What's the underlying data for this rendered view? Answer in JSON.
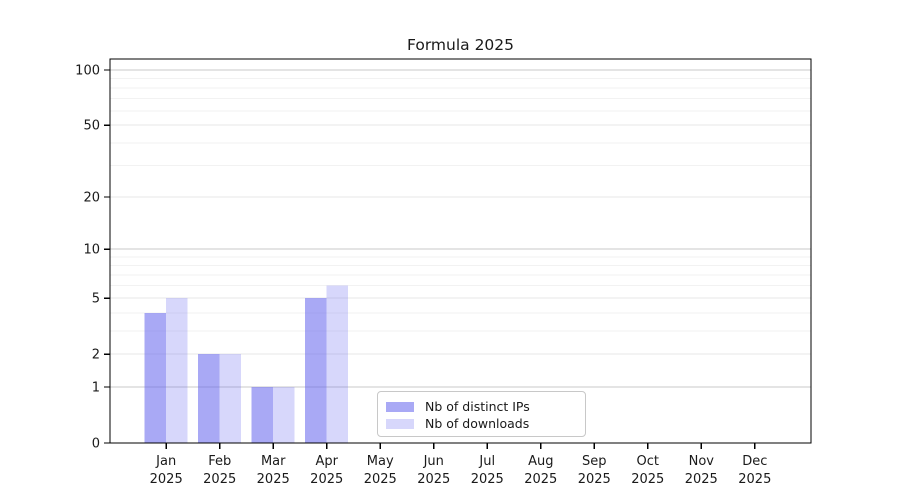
{
  "chart_data": {
    "type": "bar",
    "title": "Formula 2025",
    "categories": [
      "Jan 2025",
      "Feb 2025",
      "Mar 2025",
      "Apr 2025",
      "May 2025",
      "Jun 2025",
      "Jul 2025",
      "Aug 2025",
      "Sep 2025",
      "Oct 2025",
      "Nov 2025",
      "Dec 2025"
    ],
    "series": [
      {
        "name": "Nb of distinct IPs",
        "color": "rgba(102,102,238,0.56)",
        "values": [
          4,
          2,
          1,
          5,
          0,
          0,
          0,
          0,
          0,
          0,
          0,
          0
        ]
      },
      {
        "name": "Nb of downloads",
        "color": "rgba(102,102,238,0.26)",
        "values": [
          5,
          2,
          1,
          6,
          0,
          0,
          0,
          0,
          0,
          0,
          0,
          0
        ]
      }
    ],
    "y_scale": "log1p",
    "ylim": [
      0,
      115
    ],
    "y_ticks_major": [
      0,
      1,
      2,
      5,
      10,
      20,
      50,
      100
    ],
    "y_ticks_decade": [
      1,
      10,
      100
    ],
    "y_ticks_minor": [
      3,
      4,
      6,
      7,
      8,
      9,
      30,
      40,
      60,
      70,
      80,
      90
    ],
    "grid": true,
    "legend_position": "lower center-left inside plot"
  },
  "colors": {
    "background": "#ffffff",
    "text": "#1a1a1a",
    "spine": "#000000",
    "grid_decade": "#c9c9c9",
    "grid_major": "#e7e7e7",
    "grid_minor": "#f2f2f2",
    "legend_border": "#c8c8c8"
  }
}
